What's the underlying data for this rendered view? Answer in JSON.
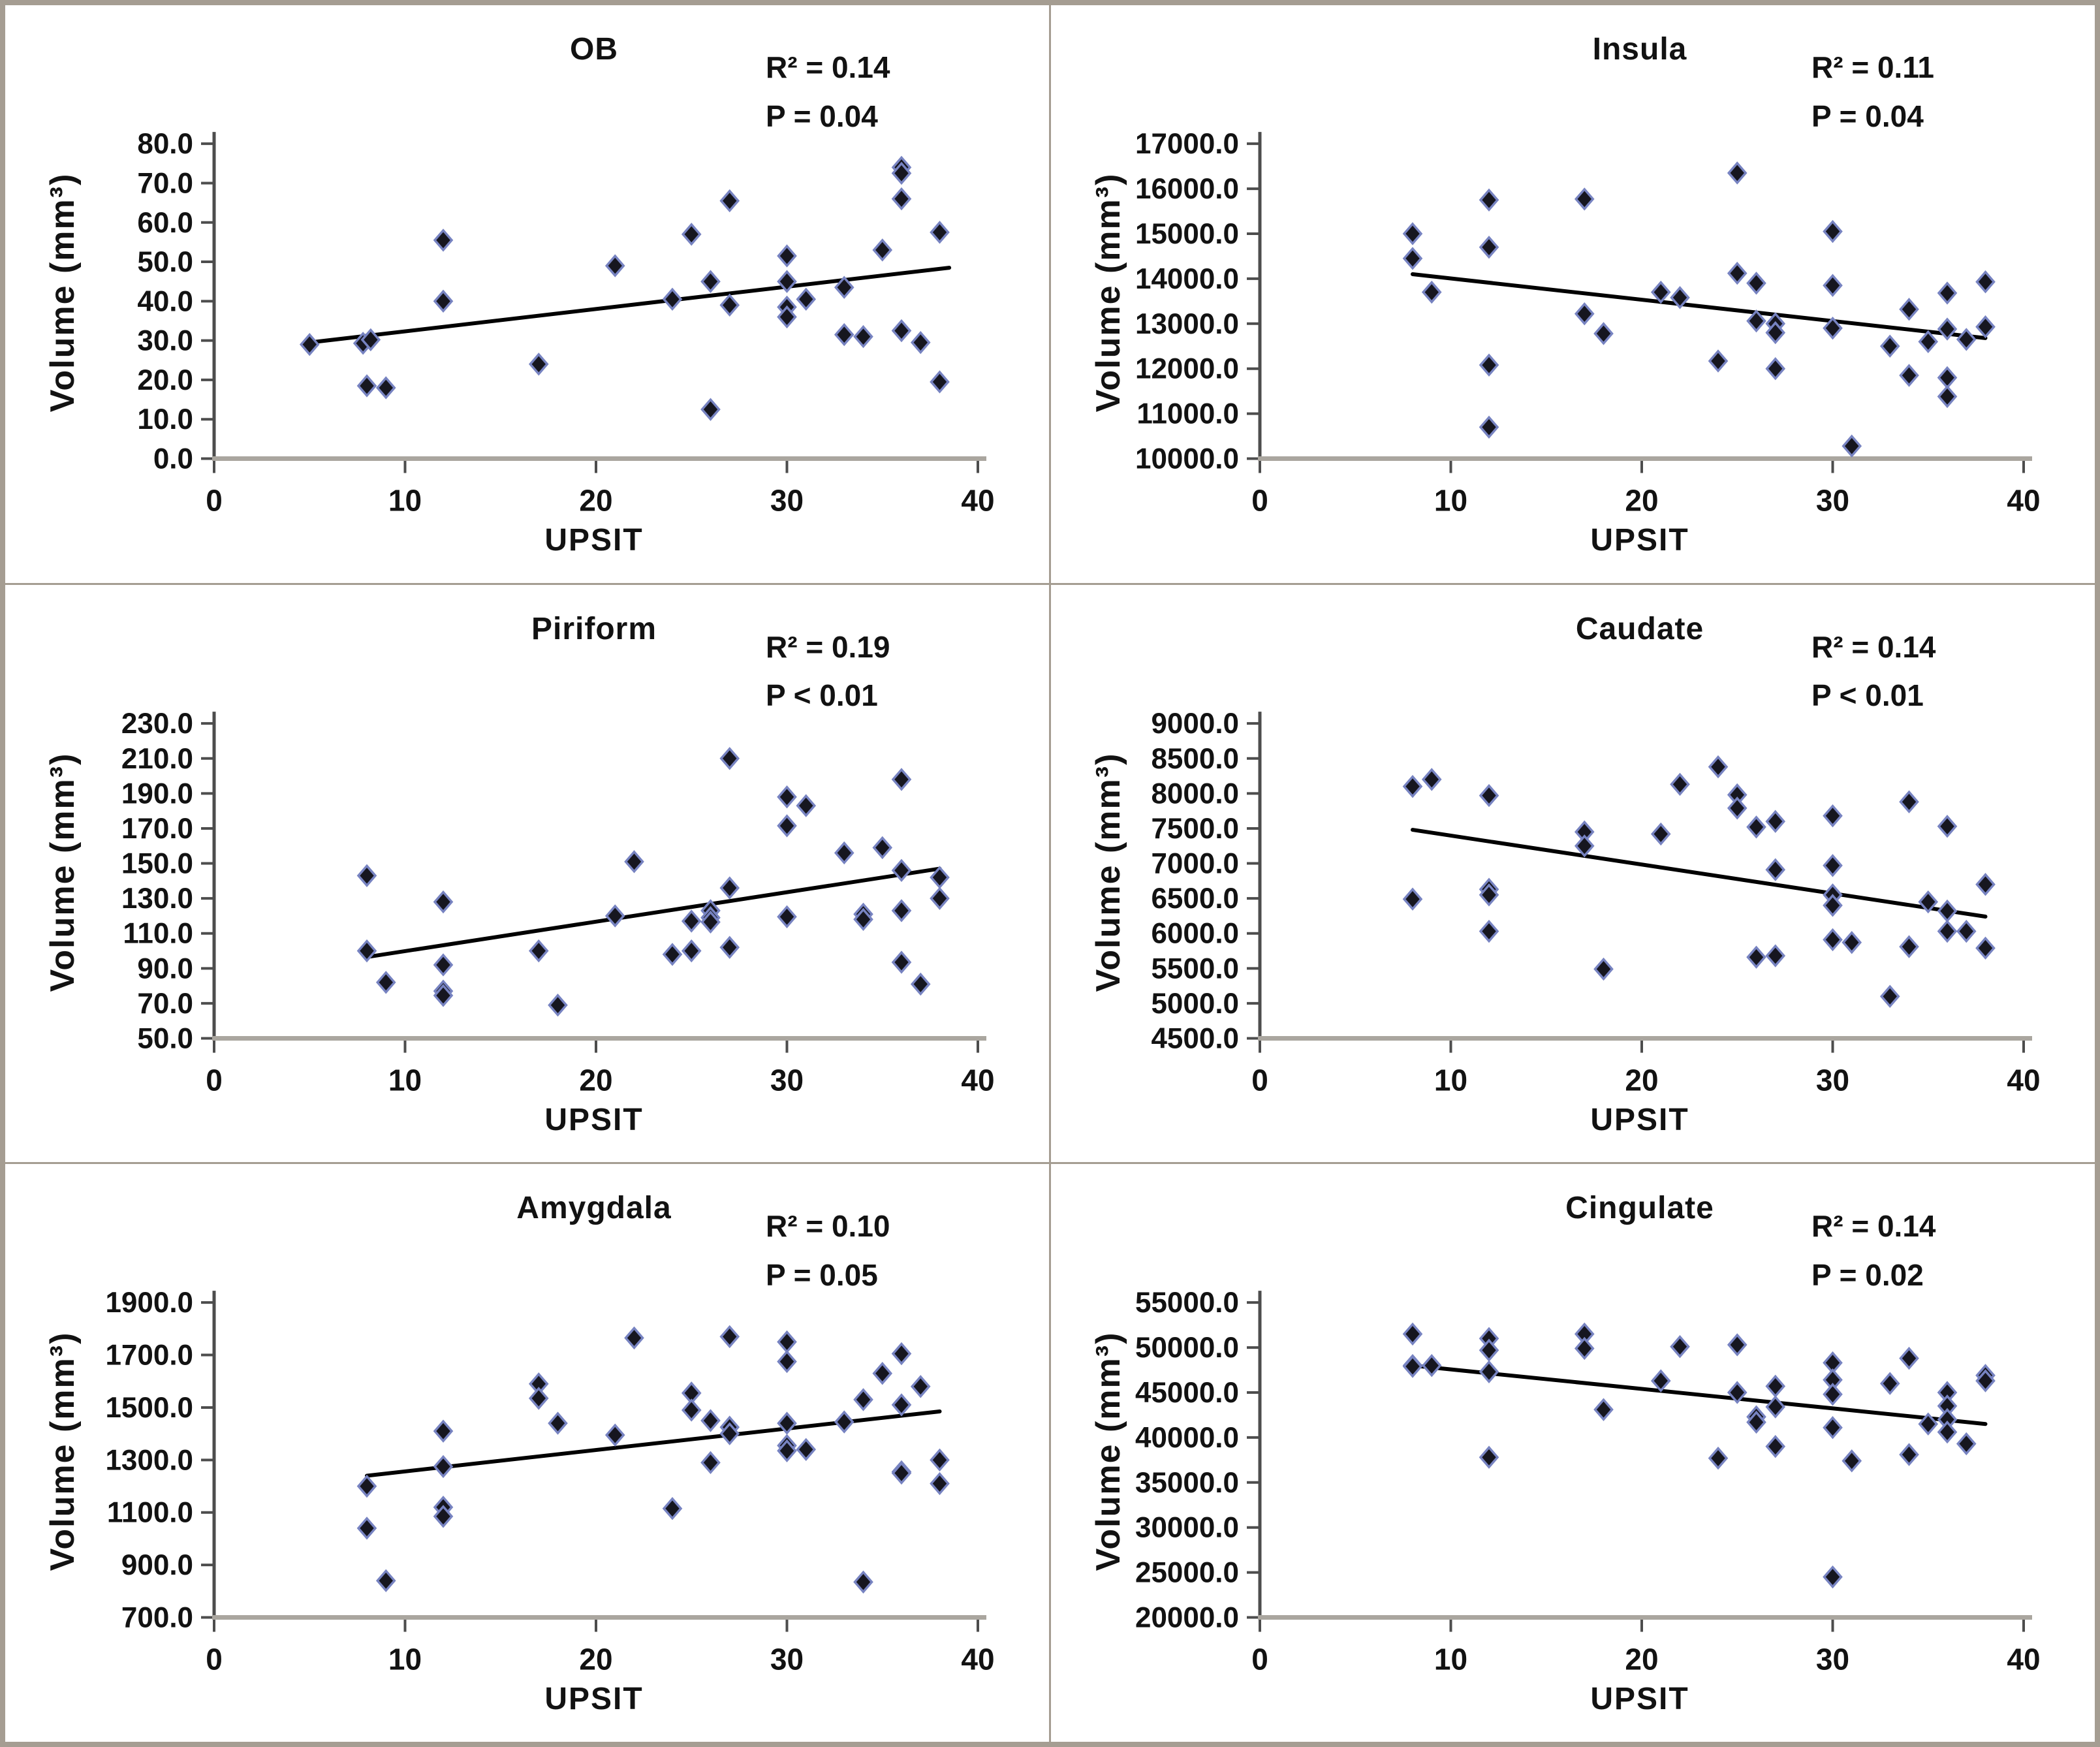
{
  "figure": {
    "xlabel": "UPSIT",
    "ylabel": "Volume (mm³)",
    "xlim": [
      0,
      40
    ],
    "x_ticks": [
      0,
      10,
      20,
      30,
      40
    ],
    "colors": {
      "marker_fill": "#16161f",
      "marker_stroke": "#7783c1",
      "trend_line": "#000000",
      "y_axis": "#4d4d4d",
      "x_axis": "#aaa69f",
      "tick": "#4d4d4d",
      "text": "#121212",
      "frame": "#a59d92"
    }
  },
  "chart_data": [
    {
      "type": "scatter",
      "title": "OB",
      "r2": "R² = 0.14",
      "p": "P = 0.04",
      "xlabel": "UPSIT",
      "ylabel": "Volume (mm³)",
      "xlim": [
        0,
        40
      ],
      "ylim": [
        0,
        80
      ],
      "y_step": 10,
      "legend": "none",
      "grid": false,
      "points": [
        [
          5,
          29
        ],
        [
          7.8,
          29.3
        ],
        [
          8.2,
          30.2
        ],
        [
          8,
          18.5
        ],
        [
          9,
          18
        ],
        [
          12,
          55.5
        ],
        [
          12,
          40
        ],
        [
          17,
          24
        ],
        [
          21,
          49
        ],
        [
          24,
          40.5
        ],
        [
          25,
          57
        ],
        [
          26,
          45
        ],
        [
          26,
          12.5
        ],
        [
          27,
          65.5
        ],
        [
          27,
          39
        ],
        [
          30,
          51.5
        ],
        [
          30,
          45
        ],
        [
          30,
          38.5
        ],
        [
          30,
          36
        ],
        [
          31,
          40.5
        ],
        [
          33,
          43.5
        ],
        [
          33,
          31.5
        ],
        [
          34,
          31
        ],
        [
          35,
          53
        ],
        [
          36,
          74
        ],
        [
          36,
          72.5
        ],
        [
          36,
          66
        ],
        [
          36,
          32.5
        ],
        [
          37,
          29.5
        ],
        [
          38,
          57.5
        ],
        [
          38,
          19.5
        ]
      ],
      "trend": {
        "x1": 5,
        "y1": 29.5,
        "x2": 38.5,
        "y2": 48.5
      }
    },
    {
      "type": "scatter",
      "title": "Insula",
      "r2": "R² = 0.11",
      "p": "P = 0.04",
      "xlabel": "UPSIT",
      "ylabel": "Volume (mm³)",
      "xlim": [
        0,
        40
      ],
      "ylim": [
        10000,
        17000
      ],
      "y_step": 1000,
      "legend": "none",
      "grid": false,
      "points": [
        [
          8,
          15000
        ],
        [
          8,
          14450
        ],
        [
          9,
          13700
        ],
        [
          12,
          15750
        ],
        [
          12,
          14700
        ],
        [
          12,
          12080
        ],
        [
          12,
          10700
        ],
        [
          17,
          15770
        ],
        [
          17,
          13220
        ],
        [
          18,
          12780
        ],
        [
          21,
          13700
        ],
        [
          22,
          13580
        ],
        [
          24,
          12170
        ],
        [
          25,
          16350
        ],
        [
          25,
          14120
        ],
        [
          26,
          13900
        ],
        [
          26,
          13060
        ],
        [
          27,
          13000
        ],
        [
          27,
          12800
        ],
        [
          27,
          12000
        ],
        [
          30,
          15050
        ],
        [
          30,
          13850
        ],
        [
          30,
          12900
        ],
        [
          31,
          10280
        ],
        [
          33,
          12500
        ],
        [
          34,
          13320
        ],
        [
          34,
          11850
        ],
        [
          35,
          12600
        ],
        [
          36,
          13680
        ],
        [
          36,
          12880
        ],
        [
          36,
          11800
        ],
        [
          36,
          11380
        ],
        [
          37,
          12650
        ],
        [
          38,
          13930
        ],
        [
          38,
          12930
        ]
      ],
      "trend": {
        "x1": 8,
        "y1": 14100,
        "x2": 38,
        "y2": 12680
      }
    },
    {
      "type": "scatter",
      "title": "Piriform",
      "r2": "R² = 0.19",
      "p": "P < 0.01",
      "xlabel": "UPSIT",
      "ylabel": "Volume (mm³)",
      "xlim": [
        0,
        40
      ],
      "ylim": [
        50,
        230
      ],
      "y_step": 20,
      "legend": "none",
      "grid": false,
      "points": [
        [
          8,
          143
        ],
        [
          8,
          100
        ],
        [
          9,
          82
        ],
        [
          12,
          128
        ],
        [
          12,
          92
        ],
        [
          12,
          77
        ],
        [
          12,
          74.5
        ],
        [
          17,
          100
        ],
        [
          18,
          69
        ],
        [
          21,
          120
        ],
        [
          22,
          151
        ],
        [
          24,
          98
        ],
        [
          25,
          117
        ],
        [
          25,
          100
        ],
        [
          26,
          123
        ],
        [
          26,
          119
        ],
        [
          26,
          116.5
        ],
        [
          27,
          210
        ],
        [
          27,
          136
        ],
        [
          27,
          102
        ],
        [
          30,
          188
        ],
        [
          30,
          171.5
        ],
        [
          30,
          119.5
        ],
        [
          31,
          183
        ],
        [
          33,
          156
        ],
        [
          34,
          121
        ],
        [
          34,
          118
        ],
        [
          35,
          159
        ],
        [
          36,
          198
        ],
        [
          36,
          146
        ],
        [
          36,
          123
        ],
        [
          36,
          93.5
        ],
        [
          37,
          81
        ],
        [
          38,
          142
        ],
        [
          38,
          130
        ]
      ],
      "trend": {
        "x1": 8,
        "y1": 96.5,
        "x2": 38,
        "y2": 147
      }
    },
    {
      "type": "scatter",
      "title": "Caudate",
      "r2": "R² = 0.14",
      "p": "P < 0.01",
      "xlabel": "UPSIT",
      "ylabel": "Volume (mm³)",
      "xlim": [
        0,
        40
      ],
      "ylim": [
        4500,
        9000
      ],
      "y_step": 500,
      "legend": "none",
      "grid": false,
      "points": [
        [
          8,
          8100
        ],
        [
          9,
          8200
        ],
        [
          8,
          6490
        ],
        [
          12,
          7970
        ],
        [
          12,
          6630
        ],
        [
          12,
          6550
        ],
        [
          12,
          6030
        ],
        [
          17,
          7450
        ],
        [
          17,
          7250
        ],
        [
          18,
          5490
        ],
        [
          21,
          7420
        ],
        [
          22,
          8130
        ],
        [
          24,
          8380
        ],
        [
          25,
          7980
        ],
        [
          25,
          7790
        ],
        [
          26,
          7520
        ],
        [
          26,
          5660
        ],
        [
          27,
          7600
        ],
        [
          27,
          6910
        ],
        [
          27,
          5680
        ],
        [
          30,
          7680
        ],
        [
          30,
          6970
        ],
        [
          30,
          6550
        ],
        [
          30,
          6400
        ],
        [
          30,
          5910
        ],
        [
          31,
          5870
        ],
        [
          33,
          5100
        ],
        [
          34,
          7880
        ],
        [
          34,
          5810
        ],
        [
          35,
          6450
        ],
        [
          36,
          7530
        ],
        [
          36,
          6320
        ],
        [
          36,
          6030
        ],
        [
          37,
          6030
        ],
        [
          38,
          6700
        ],
        [
          38,
          5790
        ]
      ],
      "trend": {
        "x1": 8,
        "y1": 7480,
        "x2": 38,
        "y2": 6240
      }
    },
    {
      "type": "scatter",
      "title": "Amygdala",
      "r2": "R² = 0.10",
      "p": "P = 0.05",
      "xlabel": "UPSIT",
      "ylabel": "Volume (mm³)",
      "xlim": [
        0,
        40
      ],
      "ylim": [
        700,
        1900
      ],
      "y_step": 200,
      "legend": "none",
      "grid": false,
      "points": [
        [
          8,
          1200
        ],
        [
          8,
          1040
        ],
        [
          9,
          840
        ],
        [
          12,
          1410
        ],
        [
          12,
          1275
        ],
        [
          12,
          1120
        ],
        [
          12,
          1085
        ],
        [
          17,
          1590
        ],
        [
          17,
          1535
        ],
        [
          18,
          1440
        ],
        [
          21,
          1395
        ],
        [
          22,
          1765
        ],
        [
          24,
          1115
        ],
        [
          25,
          1555
        ],
        [
          25,
          1490
        ],
        [
          26,
          1450
        ],
        [
          26,
          1290
        ],
        [
          27,
          1770
        ],
        [
          27,
          1425
        ],
        [
          27,
          1400
        ],
        [
          30,
          1750
        ],
        [
          30,
          1675
        ],
        [
          30,
          1440
        ],
        [
          30,
          1355
        ],
        [
          30,
          1335
        ],
        [
          31,
          1340
        ],
        [
          33,
          1445
        ],
        [
          34,
          1530
        ],
        [
          34,
          835
        ],
        [
          35,
          1630
        ],
        [
          36,
          1705
        ],
        [
          36,
          1510
        ],
        [
          36,
          1255
        ],
        [
          36,
          1250
        ],
        [
          37,
          1580
        ],
        [
          38,
          1300
        ],
        [
          38,
          1210
        ]
      ],
      "trend": {
        "x1": 8,
        "y1": 1240,
        "x2": 38,
        "y2": 1485
      }
    },
    {
      "type": "scatter",
      "title": "Cingulate",
      "r2": "R² = 0.14",
      "p": "P = 0.02",
      "xlabel": "UPSIT",
      "ylabel": "Volume (mm³)",
      "xlim": [
        0,
        40
      ],
      "ylim": [
        20000,
        55000
      ],
      "y_step": 5000,
      "legend": "none",
      "grid": false,
      "points": [
        [
          8,
          51500
        ],
        [
          8,
          48000
        ],
        [
          8,
          47900
        ],
        [
          9,
          48000
        ],
        [
          12,
          51000
        ],
        [
          12,
          49700
        ],
        [
          12,
          47300
        ],
        [
          12,
          37800
        ],
        [
          17,
          51500
        ],
        [
          17,
          49900
        ],
        [
          18,
          43100
        ],
        [
          21,
          46300
        ],
        [
          22,
          50100
        ],
        [
          24,
          37700
        ],
        [
          25,
          50300
        ],
        [
          25,
          45000
        ],
        [
          26,
          42300
        ],
        [
          26,
          41700
        ],
        [
          27,
          45700
        ],
        [
          27,
          43400
        ],
        [
          27,
          39000
        ],
        [
          30,
          48300
        ],
        [
          30,
          46400
        ],
        [
          30,
          44800
        ],
        [
          30,
          41100
        ],
        [
          30,
          24500
        ],
        [
          31,
          37400
        ],
        [
          33,
          46000
        ],
        [
          34,
          48800
        ],
        [
          34,
          38100
        ],
        [
          35,
          41500
        ],
        [
          36,
          45000
        ],
        [
          36,
          43500
        ],
        [
          36,
          42000
        ],
        [
          36,
          40600
        ],
        [
          37,
          39300
        ],
        [
          38,
          46900
        ],
        [
          38,
          46300
        ]
      ],
      "trend": {
        "x1": 8,
        "y1": 48000,
        "x2": 38,
        "y2": 41500
      }
    }
  ]
}
